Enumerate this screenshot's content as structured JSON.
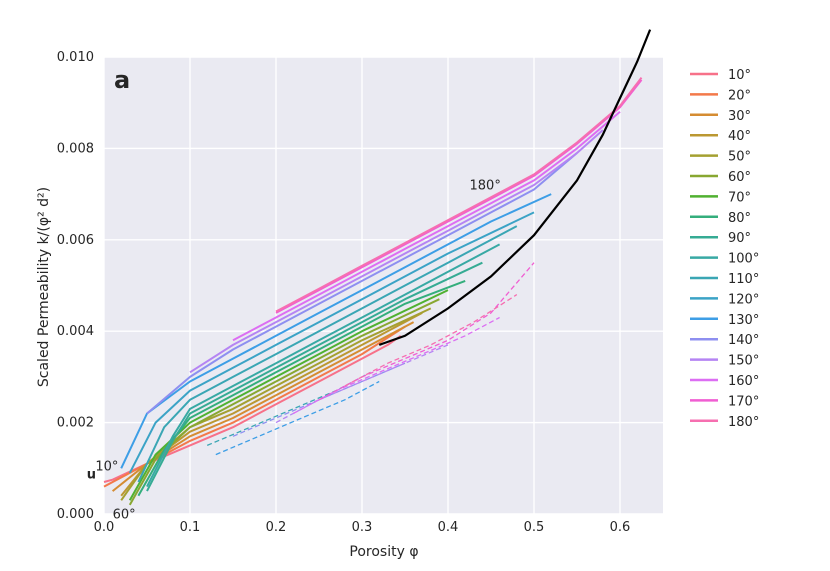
{
  "chart_data": {
    "type": "line",
    "panel_label": "a",
    "xlabel": "Porosity φ",
    "ylabel": "Scaled Permeability k/(φ² d²)",
    "xlim": [
      0.0,
      0.65
    ],
    "ylim": [
      0.0,
      0.01
    ],
    "xticks": [
      "0.0",
      "0.1",
      "0.2",
      "0.3",
      "0.4",
      "0.5",
      "0.6"
    ],
    "yticks": [
      "0.000",
      "0.002",
      "0.004",
      "0.006",
      "0.008",
      "0.010"
    ],
    "grid": true,
    "legend_position": "right",
    "annotations": [
      {
        "text": "180°",
        "x": 0.425,
        "y": 0.0071
      },
      {
        "text": "10°",
        "x": -0.01,
        "y": 0.00095
      },
      {
        "text": "60°",
        "x": 0.01,
        "y": -0.0001
      },
      {
        "text": "u",
        "x": -0.02,
        "y": 0.00078
      }
    ],
    "series": [
      {
        "name": "10°",
        "color": "#f77189",
        "x": [
          0.0,
          0.01,
          0.05,
          0.1,
          0.15,
          0.2,
          0.25,
          0.3,
          0.33,
          0.345
        ],
        "y": [
          0.0007,
          0.00075,
          0.0011,
          0.0015,
          0.0019,
          0.0024,
          0.0029,
          0.0034,
          0.0037,
          0.0039
        ]
      },
      {
        "name": "20°",
        "color": "#f3794a",
        "x": [
          0.0,
          0.05,
          0.1,
          0.15,
          0.2,
          0.25,
          0.3,
          0.35
        ],
        "y": [
          0.0006,
          0.0011,
          0.0016,
          0.002,
          0.0025,
          0.003,
          0.0035,
          0.0041
        ]
      },
      {
        "name": "30°",
        "color": "#d58c32",
        "x": [
          0.01,
          0.05,
          0.1,
          0.15,
          0.2,
          0.25,
          0.3,
          0.36
        ],
        "y": [
          0.0005,
          0.0011,
          0.0017,
          0.0021,
          0.0026,
          0.0031,
          0.0036,
          0.0042
        ]
      },
      {
        "name": "40°",
        "color": "#bb9832",
        "x": [
          0.02,
          0.05,
          0.1,
          0.15,
          0.2,
          0.25,
          0.3,
          0.37
        ],
        "y": [
          0.0004,
          0.0011,
          0.0018,
          0.0022,
          0.0027,
          0.0032,
          0.0037,
          0.0044
        ]
      },
      {
        "name": "50°",
        "color": "#a4a031",
        "x": [
          0.02,
          0.05,
          0.1,
          0.15,
          0.2,
          0.25,
          0.3,
          0.38
        ],
        "y": [
          0.0003,
          0.0011,
          0.0019,
          0.0023,
          0.0028,
          0.0033,
          0.0038,
          0.0045
        ]
      },
      {
        "name": "60°",
        "color": "#88a731",
        "x": [
          0.03,
          0.06,
          0.1,
          0.15,
          0.2,
          0.25,
          0.3,
          0.39
        ],
        "y": [
          0.0002,
          0.0012,
          0.0019,
          0.0024,
          0.0029,
          0.0034,
          0.0039,
          0.0047
        ]
      },
      {
        "name": "70°",
        "color": "#50b131",
        "x": [
          0.03,
          0.06,
          0.1,
          0.15,
          0.2,
          0.25,
          0.3,
          0.4
        ],
        "y": [
          0.0003,
          0.0013,
          0.002,
          0.0025,
          0.003,
          0.0035,
          0.004,
          0.0049
        ]
      },
      {
        "name": "80°",
        "color": "#34ae7c",
        "x": [
          0.04,
          0.07,
          0.1,
          0.15,
          0.2,
          0.25,
          0.3,
          0.35,
          0.42
        ],
        "y": [
          0.0004,
          0.0014,
          0.0021,
          0.0026,
          0.0031,
          0.0036,
          0.0041,
          0.0046,
          0.0051
        ]
      },
      {
        "name": "90°",
        "color": "#36ab94",
        "x": [
          0.05,
          0.08,
          0.1,
          0.15,
          0.2,
          0.25,
          0.3,
          0.35,
          0.44
        ],
        "y": [
          0.0005,
          0.0016,
          0.0022,
          0.0027,
          0.0032,
          0.0037,
          0.0042,
          0.0047,
          0.0055
        ]
      },
      {
        "name": "100°",
        "color": "#38a9a4",
        "x": [
          0.05,
          0.08,
          0.1,
          0.15,
          0.2,
          0.25,
          0.3,
          0.35,
          0.46
        ],
        "y": [
          0.0006,
          0.0017,
          0.0023,
          0.0028,
          0.0033,
          0.0038,
          0.0043,
          0.0048,
          0.0059
        ]
      },
      {
        "name": "110°",
        "color": "#3aa6b4",
        "x": [
          0.04,
          0.07,
          0.1,
          0.15,
          0.2,
          0.25,
          0.3,
          0.35,
          0.4,
          0.48
        ],
        "y": [
          0.0007,
          0.0019,
          0.0025,
          0.003,
          0.0035,
          0.004,
          0.0045,
          0.005,
          0.0055,
          0.0063
        ]
      },
      {
        "name": "120°",
        "color": "#3ba3c6",
        "x": [
          0.03,
          0.06,
          0.1,
          0.15,
          0.2,
          0.25,
          0.3,
          0.35,
          0.4,
          0.5
        ],
        "y": [
          0.0009,
          0.002,
          0.0027,
          0.0032,
          0.0037,
          0.0042,
          0.0047,
          0.0052,
          0.0057,
          0.0066
        ]
      },
      {
        "name": "130°",
        "color": "#3d9ee6",
        "x": [
          0.02,
          0.05,
          0.1,
          0.15,
          0.2,
          0.25,
          0.3,
          0.35,
          0.4,
          0.45,
          0.52
        ],
        "y": [
          0.001,
          0.0022,
          0.0029,
          0.0034,
          0.0039,
          0.0044,
          0.0049,
          0.0054,
          0.0059,
          0.0064,
          0.007
        ]
      },
      {
        "name": "140°",
        "color": "#8e8ff0",
        "x": [
          0.05,
          0.1,
          0.15,
          0.2,
          0.25,
          0.3,
          0.35,
          0.4,
          0.45,
          0.5,
          0.55
        ],
        "y": [
          0.0022,
          0.003,
          0.0036,
          0.0041,
          0.0046,
          0.0051,
          0.0056,
          0.0061,
          0.0066,
          0.0071,
          0.0079
        ]
      },
      {
        "name": "150°",
        "color": "#b584f3",
        "x": [
          0.1,
          0.15,
          0.2,
          0.25,
          0.3,
          0.35,
          0.4,
          0.45,
          0.5,
          0.55,
          0.58
        ],
        "y": [
          0.0031,
          0.0037,
          0.0042,
          0.0047,
          0.0052,
          0.0057,
          0.0062,
          0.0067,
          0.0072,
          0.0079,
          0.0084
        ]
      },
      {
        "name": "160°",
        "color": "#dc6ef3",
        "x": [
          0.15,
          0.2,
          0.25,
          0.3,
          0.35,
          0.4,
          0.45,
          0.5,
          0.55,
          0.6
        ],
        "y": [
          0.0038,
          0.0043,
          0.0048,
          0.0053,
          0.0058,
          0.0063,
          0.0068,
          0.0073,
          0.008,
          0.0088
        ]
      },
      {
        "name": "170°",
        "color": "#f05ed2",
        "x": [
          0.2,
          0.25,
          0.3,
          0.35,
          0.4,
          0.45,
          0.5,
          0.55,
          0.6,
          0.625
        ],
        "y": [
          0.0044,
          0.0049,
          0.0054,
          0.0059,
          0.0064,
          0.0069,
          0.0074,
          0.0081,
          0.0089,
          0.0095
        ]
      },
      {
        "name": "180°",
        "color": "#f66fb0",
        "x": [
          0.2,
          0.25,
          0.3,
          0.35,
          0.4,
          0.45,
          0.5,
          0.55,
          0.6,
          0.625
        ],
        "y": [
          0.00443,
          0.00493,
          0.00543,
          0.00593,
          0.00643,
          0.00693,
          0.00743,
          0.00813,
          0.00893,
          0.00955
        ]
      }
    ],
    "reference_curve": {
      "color": "#000000",
      "x": [
        0.32,
        0.35,
        0.4,
        0.45,
        0.5,
        0.55,
        0.58,
        0.6,
        0.62,
        0.635
      ],
      "y": [
        0.0037,
        0.0039,
        0.0045,
        0.0052,
        0.0061,
        0.0073,
        0.0083,
        0.0091,
        0.0099,
        0.0106
      ]
    },
    "dashed_series": [
      {
        "color": "#3d9ee6",
        "x": [
          0.13,
          0.18,
          0.23,
          0.28,
          0.32
        ],
        "y": [
          0.0013,
          0.0017,
          0.0021,
          0.0025,
          0.0029
        ]
      },
      {
        "color": "#3aa6b4",
        "x": [
          0.12,
          0.17,
          0.22,
          0.27,
          0.31
        ],
        "y": [
          0.0015,
          0.0019,
          0.0023,
          0.0027,
          0.0031
        ]
      },
      {
        "color": "#8e8ff0",
        "x": [
          0.15,
          0.2,
          0.25,
          0.3,
          0.35
        ],
        "y": [
          0.0017,
          0.0021,
          0.0025,
          0.0029,
          0.0033
        ]
      },
      {
        "color": "#b584f3",
        "x": [
          0.2,
          0.25,
          0.3,
          0.35,
          0.4
        ],
        "y": [
          0.002,
          0.0025,
          0.0029,
          0.0033,
          0.0037
        ]
      },
      {
        "color": "#dc6ef3",
        "x": [
          0.22,
          0.27,
          0.32,
          0.37,
          0.42,
          0.46
        ],
        "y": [
          0.0022,
          0.0027,
          0.0031,
          0.0035,
          0.0039,
          0.0043
        ]
      },
      {
        "color": "#f05ed2",
        "x": [
          0.25,
          0.3,
          0.35,
          0.4,
          0.45,
          0.5
        ],
        "y": [
          0.0025,
          0.003,
          0.0034,
          0.0038,
          0.0044,
          0.0055
        ]
      },
      {
        "color": "#f66fb0",
        "x": [
          0.28,
          0.33,
          0.38,
          0.43,
          0.48
        ],
        "y": [
          0.0028,
          0.0033,
          0.0037,
          0.0042,
          0.0048
        ]
      }
    ]
  }
}
